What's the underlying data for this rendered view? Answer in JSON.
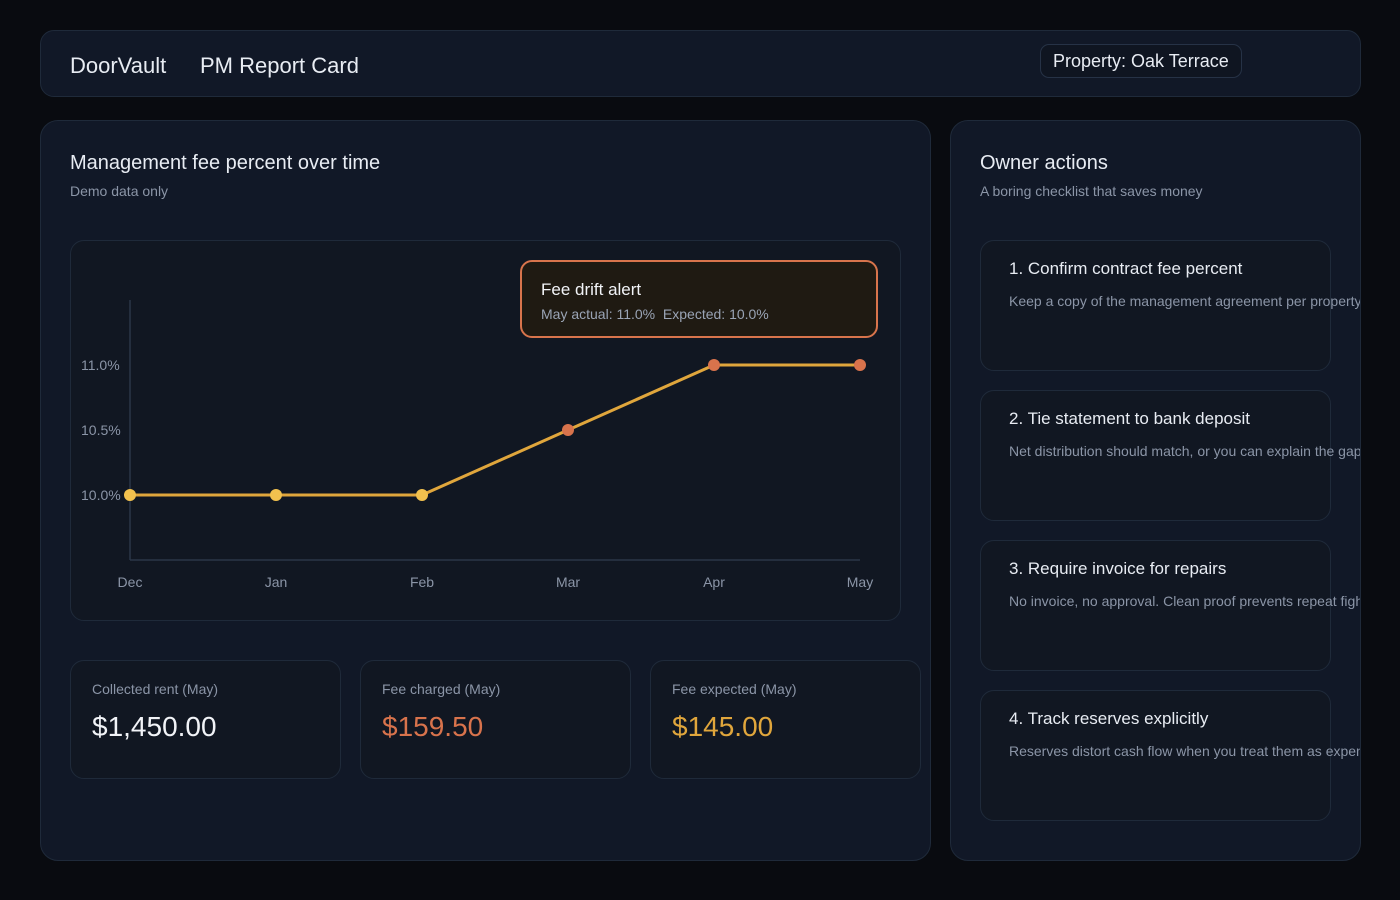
{
  "header": {
    "brand": "DoorVault",
    "title": "PM Report Card",
    "property_label": "Property: Oak Terrace"
  },
  "chart_panel": {
    "title": "Management fee percent over time",
    "subtitle": "Demo data only"
  },
  "alert": {
    "title": "Fee drift alert",
    "detail": "May actual: 11.0%  Expected: 10.0%"
  },
  "chart_data": {
    "type": "line",
    "title": "",
    "xlabel": "",
    "ylabel": "",
    "categories": [
      "Dec",
      "Jan",
      "Feb",
      "Mar",
      "Apr",
      "May"
    ],
    "series": [
      {
        "values": [
          10.0,
          10.0,
          10.0,
          10.5,
          11.0,
          11.0
        ]
      }
    ],
    "y_ticks": [
      10.0,
      10.5,
      11.0
    ],
    "y_tick_labels": [
      "10.0%",
      "10.5%",
      "11.0%"
    ],
    "ylim": [
      9.5,
      11.5
    ],
    "grid": false,
    "colors": {
      "line": "#e0a63c",
      "normal_point": "#f2c14e",
      "elevated_point": "#d8734c",
      "axis": "#2b3648",
      "tick_text": "#8b95a7"
    }
  },
  "stats": [
    {
      "label": "Collected rent (May)",
      "value": "$1,450.00",
      "color": "#f1f3f7"
    },
    {
      "label": "Fee charged (May)",
      "value": "$159.50",
      "color": "#d8734c"
    },
    {
      "label": "Fee expected (May)",
      "value": "$145.00",
      "color": "#e0a63c"
    }
  ],
  "actions_panel": {
    "title": "Owner actions",
    "subtitle": "A boring checklist that saves money",
    "items": [
      {
        "title": "1. Confirm contract fee percent",
        "desc": "Keep a copy of the management agreement per property."
      },
      {
        "title": "2. Tie statement to bank deposit",
        "desc": "Net distribution should match, or you can explain the gap."
      },
      {
        "title": "3. Require invoice for repairs",
        "desc": "No invoice, no approval. Clean proof prevents repeat fights."
      },
      {
        "title": "4. Track reserves explicitly",
        "desc": "Reserves distort cash flow when you treat them as expenses."
      }
    ]
  }
}
